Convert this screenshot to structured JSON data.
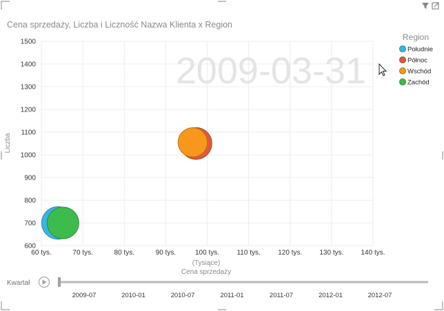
{
  "chart_data": {
    "type": "scatter",
    "subtype": "bubble",
    "title": "Cena sprzedaży, Liczba i Liczność Nazwa Klienta x Region",
    "xlabel": "Cena sprzedaży",
    "xunit_label": "(Tysiące)",
    "ylabel": "Liczba",
    "xlim": [
      60,
      140
    ],
    "ylim": [
      600,
      1500
    ],
    "x_ticks": [
      60,
      70,
      80,
      90,
      100,
      110,
      120,
      130,
      140
    ],
    "x_tick_labels": [
      "60 tys.",
      "70 tys.",
      "80 tys.",
      "90 tys.",
      "100 tys.",
      "110 tys.",
      "120 tys.",
      "130 tys.",
      "140 tys."
    ],
    "y_ticks": [
      600,
      700,
      800,
      900,
      1000,
      1100,
      1200,
      1300,
      1400,
      1500
    ],
    "y_tick_labels": [
      "600",
      "700",
      "800",
      "900",
      "1000",
      "1100",
      "1200",
      "1300",
      "1400",
      "1500"
    ],
    "grid": true,
    "play_axis_value": "2009-03-31",
    "legend_title": "Region",
    "legend_position": "right",
    "series": [
      {
        "name": "Południe",
        "color": "#3ab4e6",
        "points": [
          {
            "x": 64,
            "y": 700,
            "size": 1.05
          }
        ]
      },
      {
        "name": "Północ",
        "color": "#e05a3a",
        "points": [
          {
            "x": 97.3,
            "y": 1050,
            "size": 1.0
          }
        ]
      },
      {
        "name": "Wschód",
        "color": "#f7981d",
        "points": [
          {
            "x": 96.5,
            "y": 1055,
            "size": 0.85
          }
        ]
      },
      {
        "name": "Zachód",
        "color": "#3cbc4c",
        "points": [
          {
            "x": 65.2,
            "y": 700,
            "size": 1.0
          }
        ]
      }
    ]
  },
  "timeline": {
    "label": "Kwartał",
    "ticks": [
      "2009-07",
      "2010-01",
      "2010-07",
      "2011-01",
      "2011-07",
      "2012-01",
      "2012-07"
    ]
  },
  "toolbar": {
    "filter_icon": "filter-icon",
    "popout_icon": "popout-icon"
  }
}
